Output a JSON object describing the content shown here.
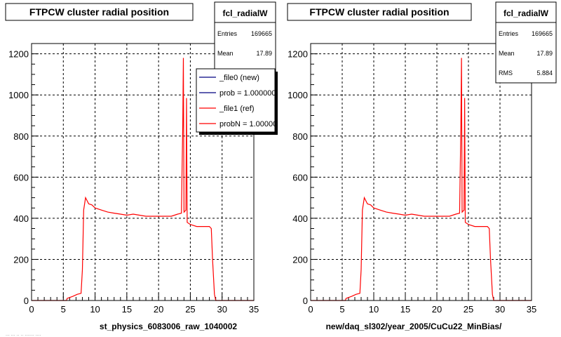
{
  "footer_text": "... ... .. .. ....... ....",
  "panels": [
    {
      "title": "FTPCW cluster radial position",
      "stats": {
        "name": "fcl_radialW",
        "rows": [
          {
            "label": "Entries",
            "value": "169665"
          },
          {
            "label": "Mean",
            "value": "17.89"
          }
        ]
      },
      "legend": {
        "entries": [
          {
            "label": "_file0 (new)",
            "color": "#000080"
          },
          {
            "label": "prob = 1.000000",
            "color": "#000080"
          },
          {
            "label": "_file1 (ref)",
            "color": "#ff0000"
          },
          {
            "label": "probN = 1.000000",
            "color": "#ff0000"
          }
        ]
      },
      "xlabel": "st_physics_6083006_raw_1040002"
    },
    {
      "title": "FTPCW cluster radial position",
      "stats": {
        "name": "fcl_radialW",
        "rows": [
          {
            "label": "Entries",
            "value": "169665"
          },
          {
            "label": "Mean",
            "value": "17.89"
          },
          {
            "label": "RMS",
            "value": "5.884"
          }
        ]
      },
      "xlabel": "new/daq_sl302/year_2005/CuCu22_MinBias/"
    }
  ],
  "chart_data": {
    "type": "line",
    "xlim": [
      0,
      35
    ],
    "ylim": [
      0,
      1250
    ],
    "xticks": [
      0,
      5,
      10,
      15,
      20,
      25,
      30,
      35
    ],
    "yticks": [
      0,
      200,
      400,
      600,
      800,
      1000,
      1200
    ],
    "grid": true,
    "line_color": "#ff0000",
    "series": [
      {
        "values_note": "histogram outline (x in cm, counts)",
        "points": [
          [
            0,
            0
          ],
          [
            5.5,
            0
          ],
          [
            5.6,
            10
          ],
          [
            6.5,
            20
          ],
          [
            7.2,
            30
          ],
          [
            7.8,
            35
          ],
          [
            8.0,
            150
          ],
          [
            8.2,
            440
          ],
          [
            8.5,
            500
          ],
          [
            9.0,
            470
          ],
          [
            9.5,
            465
          ],
          [
            10.0,
            450
          ],
          [
            11.0,
            440
          ],
          [
            12.0,
            430
          ],
          [
            13.0,
            425
          ],
          [
            14.0,
            420
          ],
          [
            15.0,
            415
          ],
          [
            16.0,
            420
          ],
          [
            17.0,
            415
          ],
          [
            18.0,
            410
          ],
          [
            19.0,
            410
          ],
          [
            20.0,
            410
          ],
          [
            21.0,
            410
          ],
          [
            22.0,
            410
          ],
          [
            23.0,
            420
          ],
          [
            23.6,
            425
          ],
          [
            23.8,
            850
          ],
          [
            23.9,
            1180
          ],
          [
            24.0,
            430
          ],
          [
            24.3,
            440
          ],
          [
            24.4,
            985
          ],
          [
            24.5,
            380
          ],
          [
            25.0,
            370
          ],
          [
            26.0,
            360
          ],
          [
            27.0,
            360
          ],
          [
            28.0,
            360
          ],
          [
            28.3,
            350
          ],
          [
            28.5,
            200
          ],
          [
            28.8,
            30
          ],
          [
            29.0,
            0
          ],
          [
            35,
            0
          ]
        ]
      }
    ]
  }
}
